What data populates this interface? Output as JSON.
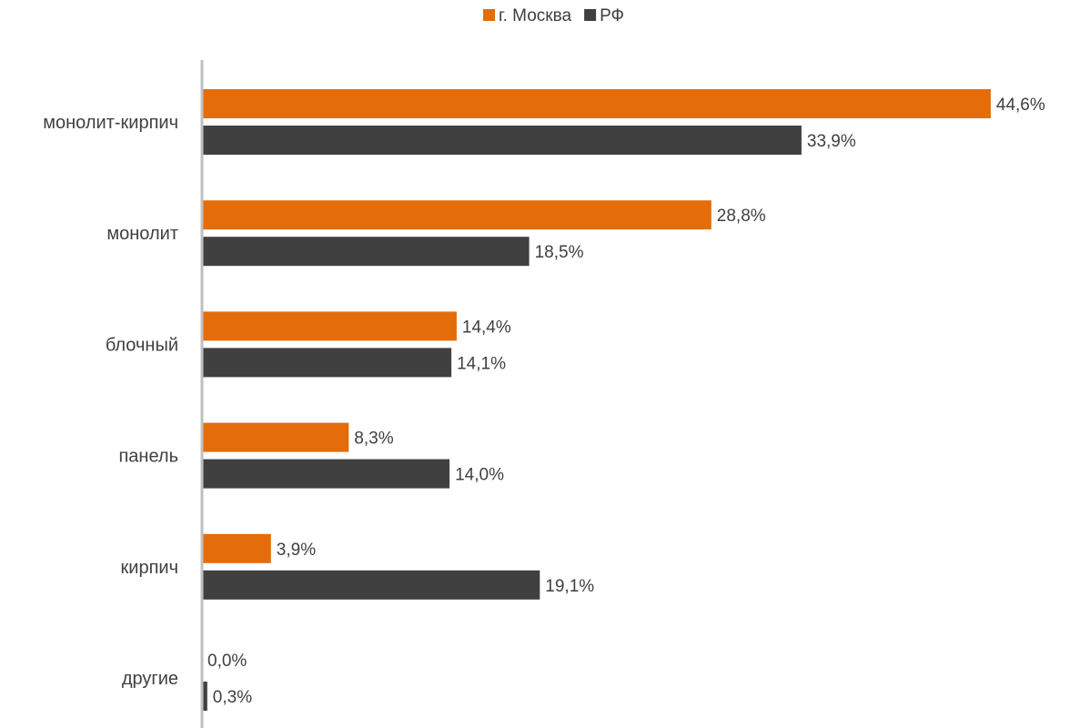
{
  "chart_data": {
    "type": "bar",
    "orientation": "horizontal",
    "title": "",
    "xlabel": "",
    "ylabel": "",
    "categories": [
      "монолит-кирпич",
      "монолит",
      "блочный",
      "панель",
      "кирпич",
      "другие"
    ],
    "series": [
      {
        "name": "г. Москва",
        "color": "#E46C0A",
        "values": [
          44.6,
          28.8,
          14.4,
          8.3,
          3.9,
          0.0
        ],
        "labels": [
          "44,6%",
          "28,8%",
          "14,4%",
          "8,3%",
          "3,9%",
          "0,0%"
        ]
      },
      {
        "name": "РФ",
        "color": "#404040",
        "values": [
          33.9,
          18.5,
          14.1,
          14.0,
          19.1,
          0.3
        ],
        "labels": [
          "33,9%",
          "18,5%",
          "14,1%",
          "14,0%",
          "19,1%",
          "0,3%"
        ]
      }
    ],
    "xlim": [
      0,
      48
    ],
    "grid": false,
    "legend_position": "top-center",
    "axis_color": "#BFBFBF"
  }
}
